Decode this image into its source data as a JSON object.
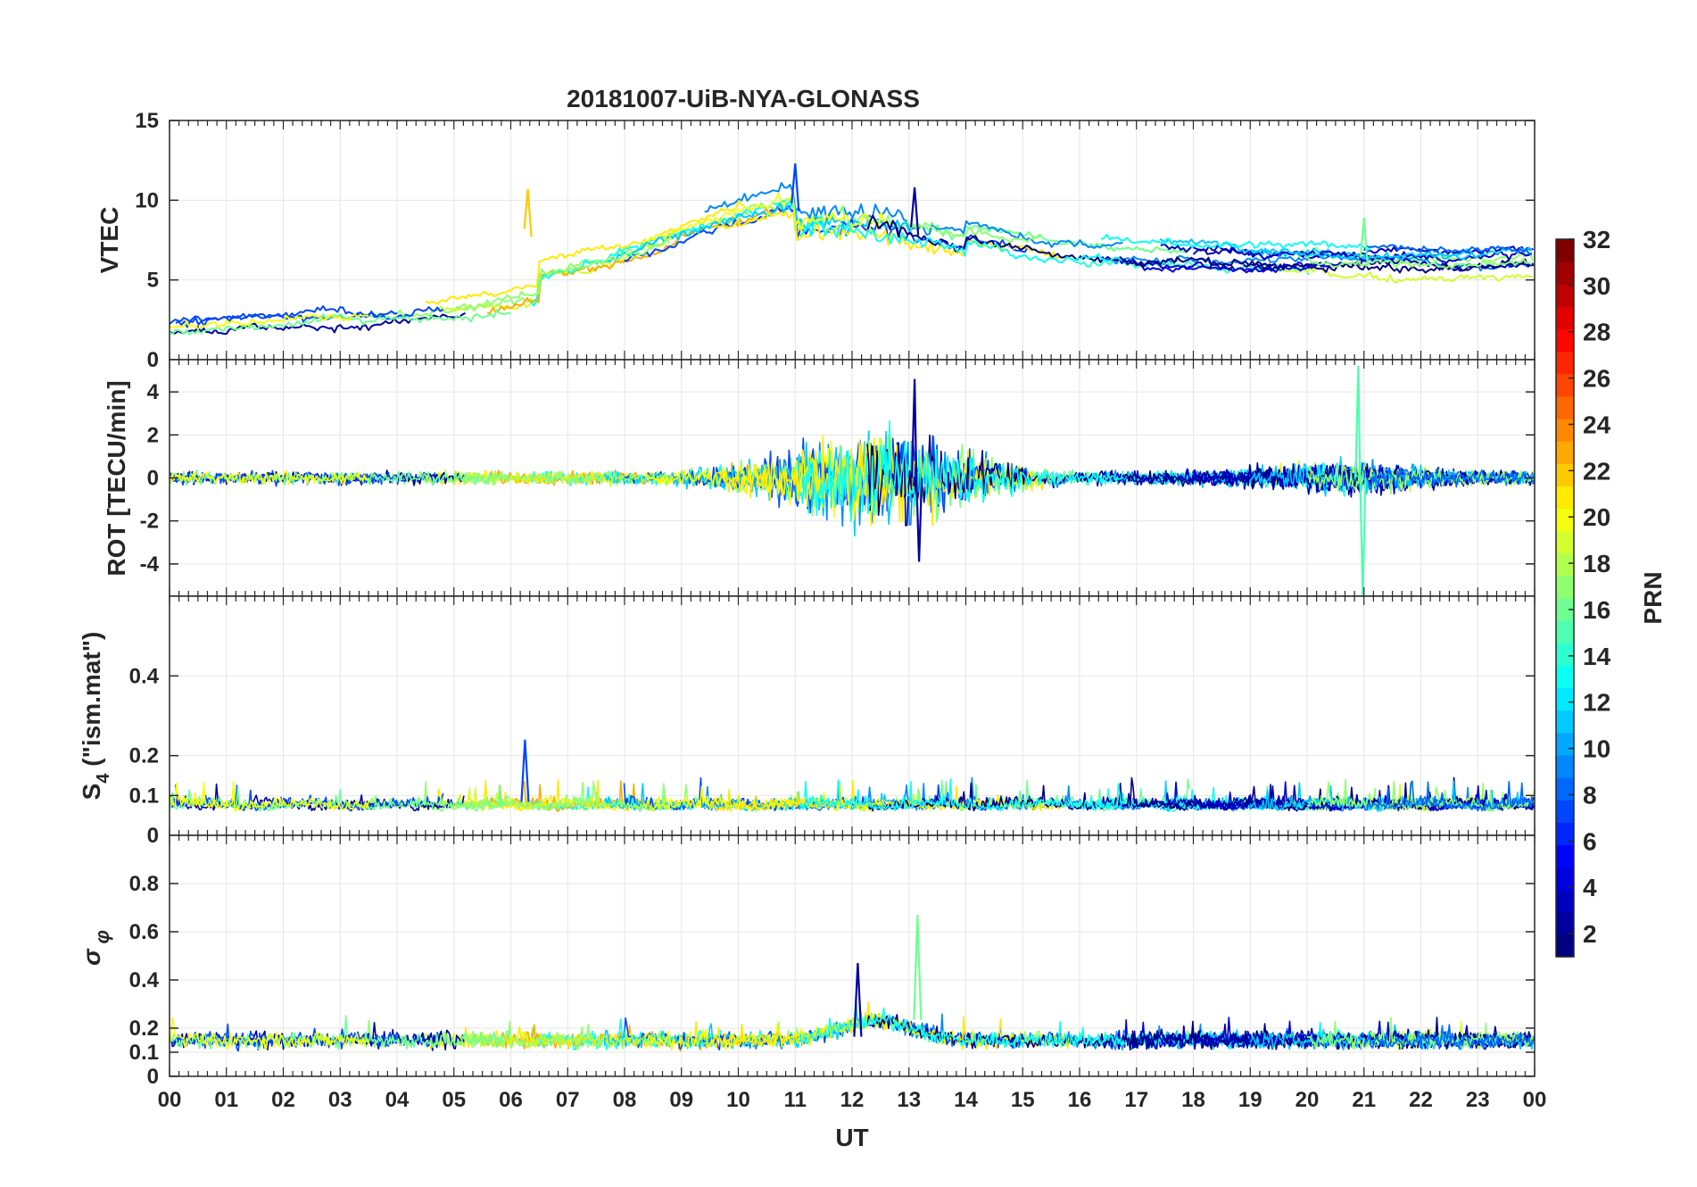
{
  "chart_data": {
    "type": "line",
    "title": "20181007-UiB-NYA-GLONASS",
    "xlabel": "UT",
    "x_ticks": [
      "00",
      "01",
      "02",
      "03",
      "04",
      "05",
      "06",
      "07",
      "08",
      "09",
      "10",
      "11",
      "12",
      "13",
      "14",
      "15",
      "16",
      "17",
      "18",
      "19",
      "20",
      "21",
      "22",
      "23",
      "00"
    ],
    "xlim_hours": [
      0,
      24
    ],
    "grid": true,
    "colorbar": {
      "label": "PRN",
      "range": [
        1,
        32
      ],
      "ticks": [
        "2",
        "4",
        "6",
        "8",
        "10",
        "12",
        "14",
        "16",
        "18",
        "20",
        "22",
        "24",
        "26",
        "28",
        "30",
        "32"
      ],
      "colormap": "jet"
    },
    "panels": [
      {
        "ylabel": "VTEC",
        "ylim": [
          0,
          15
        ],
        "yticks": [
          "0",
          "5",
          "10",
          "15"
        ],
        "series_summary": [
          {
            "prn": 2,
            "peak_time_h": 13.1,
            "peak_value": 10.8
          },
          {
            "prn": 7,
            "peak_time_h": 11.0,
            "peak_value": 12.3
          },
          {
            "prn": 16,
            "peak_time_h": 21.0,
            "peak_value": 8.9
          },
          {
            "prn": 22,
            "peak_time_h": 6.3,
            "peak_value": 10.7
          }
        ]
      },
      {
        "ylabel": "ROT [TECU/min]",
        "ylim": [
          -5.5,
          5.5
        ],
        "yticks": [
          "-4",
          "-2",
          "0",
          "2",
          "4"
        ],
        "series_summary": [
          {
            "prn": 2,
            "max": 4.6,
            "min": -3.9,
            "time_h": 13.1
          },
          {
            "prn": 15,
            "max": 5.2,
            "min": -5.5,
            "time_h": 20.9
          }
        ]
      },
      {
        "ylabel": "S_4 (\"ism.mat\")",
        "ylabel_main": "S",
        "ylabel_sub": "4",
        "ylabel_rest": " (\"ism.mat\")",
        "ylim": [
          0,
          0.6
        ],
        "yticks": [
          "0",
          "0.1",
          "0.2",
          "0.4"
        ],
        "series_summary": [
          {
            "prn": 7,
            "max": 0.24,
            "time_h": 6.25
          }
        ]
      },
      {
        "ylabel": "σ_φ",
        "ylabel_main": "σ",
        "ylabel_sub": "φ",
        "ylim": [
          0,
          1.0
        ],
        "yticks": [
          "0",
          "0.1",
          "0.2",
          "0.4",
          "0.6",
          "0.8"
        ],
        "series_summary": [
          {
            "prn": 16,
            "max": 0.67,
            "time_h": 13.15
          },
          {
            "prn": 2,
            "max": 0.47,
            "time_h": 12.1
          }
        ]
      }
    ]
  }
}
